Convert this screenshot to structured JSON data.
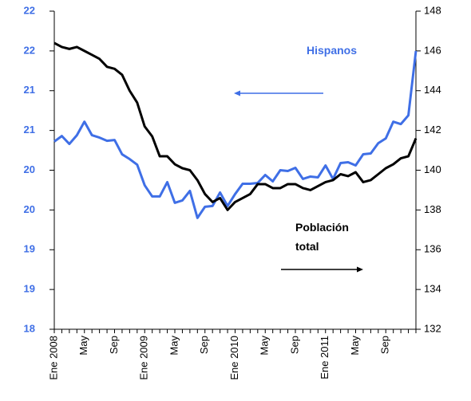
{
  "chart_data": {
    "type": "line",
    "categories": [
      "Ene 2008",
      null,
      null,
      null,
      "May",
      null,
      null,
      null,
      "Sep",
      null,
      null,
      null,
      "Ene 2009",
      null,
      null,
      null,
      "May",
      null,
      null,
      null,
      "Sep",
      null,
      null,
      null,
      "Ene 2010",
      null,
      null,
      null,
      "May",
      null,
      null,
      null,
      "Sep",
      null,
      null,
      null,
      "Ene 2011",
      null,
      null,
      null,
      "May",
      null,
      null,
      null,
      "Sep",
      null,
      null,
      null,
      null
    ],
    "series": [
      {
        "name": "Hispanos",
        "color": "#3f6fe6",
        "axis": "y",
        "values": [
          20.36,
          20.43,
          20.33,
          20.44,
          20.61,
          20.44,
          20.41,
          20.37,
          20.38,
          20.2,
          20.14,
          20.07,
          19.81,
          19.67,
          19.67,
          19.85,
          19.59,
          19.62,
          19.74,
          19.4,
          19.54,
          19.55,
          19.72,
          19.55,
          19.7,
          19.83,
          19.83,
          19.84,
          19.94,
          19.86,
          20.0,
          19.99,
          20.03,
          19.89,
          19.92,
          19.91,
          20.06,
          19.89,
          20.09,
          20.1,
          20.06,
          20.2,
          20.21,
          20.34,
          20.4,
          20.61,
          20.58,
          20.69,
          21.5
        ]
      },
      {
        "name": "Población total",
        "color": "#000000",
        "axis": "y2",
        "values": [
          146.4,
          146.2,
          146.1,
          146.2,
          146.0,
          145.8,
          145.6,
          145.2,
          145.1,
          144.8,
          144.0,
          143.4,
          142.2,
          141.7,
          140.7,
          140.7,
          140.3,
          140.1,
          140.0,
          139.5,
          138.8,
          138.4,
          138.6,
          138.0,
          138.4,
          138.6,
          138.8,
          139.3,
          139.3,
          139.1,
          139.1,
          139.3,
          139.3,
          139.1,
          139.0,
          139.2,
          139.4,
          139.5,
          139.8,
          139.7,
          139.9,
          139.4,
          139.5,
          139.8,
          140.1,
          140.3,
          140.6,
          140.7,
          141.6
        ]
      }
    ],
    "ylim": [
      18,
      22
    ],
    "yticks": [
      18,
      {
        "value": 18.5,
        "label": "19"
      },
      19,
      {
        "value": 19.5,
        "label": "20"
      },
      20,
      {
        "value": 20.5,
        "label": "21"
      },
      21,
      {
        "value": 21.5,
        "label": "22"
      },
      22
    ],
    "y2lim": [
      132,
      148
    ],
    "y2ticks": [
      132,
      134,
      136,
      138,
      140,
      142,
      144,
      146,
      148
    ],
    "grid": false
  }
}
